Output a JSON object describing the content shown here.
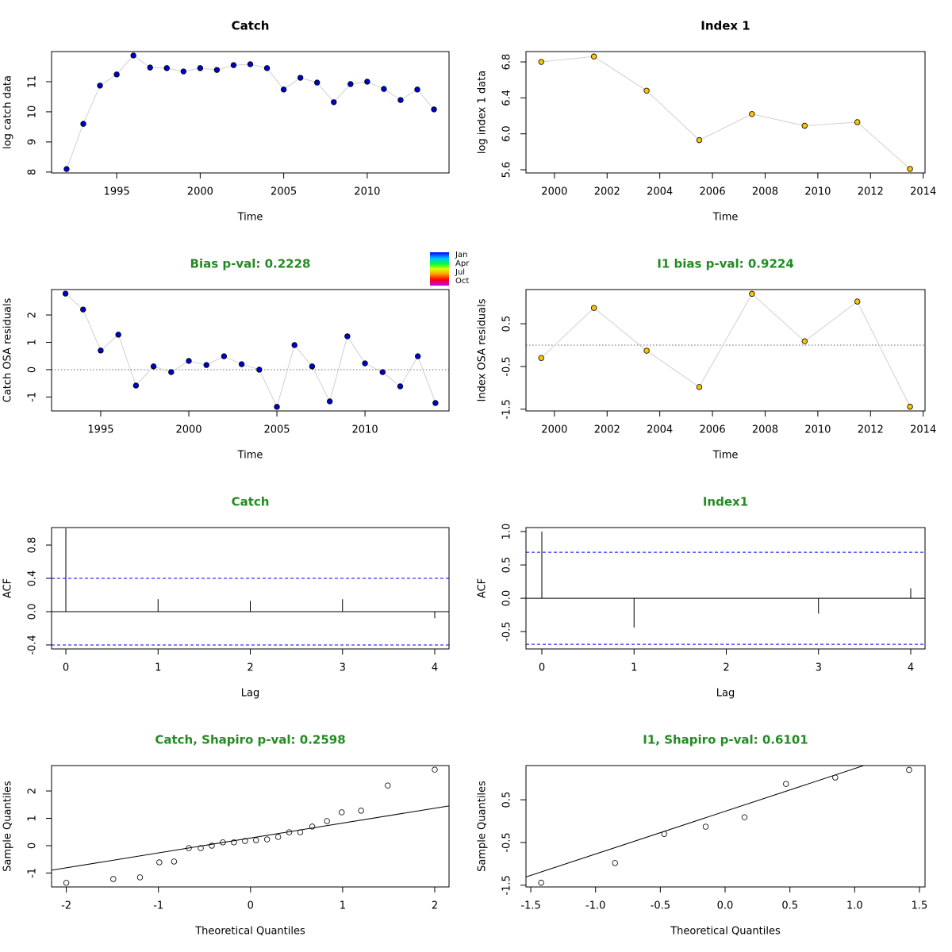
{
  "chart_data": [
    {
      "type": "line",
      "title": "Catch",
      "title_color": "#000000",
      "xlabel": "Time",
      "ylabel": "log catch data",
      "x": [
        1992,
        1993,
        1994,
        1995,
        1996,
        1997,
        1998,
        1999,
        2000,
        2001,
        2002,
        2003,
        2004,
        2005,
        2006,
        2007,
        2008,
        2009,
        2010,
        2011,
        2012,
        2013,
        2014
      ],
      "values": [
        8.1,
        9.6,
        10.87,
        11.24,
        11.87,
        11.47,
        11.45,
        11.34,
        11.45,
        11.39,
        11.55,
        11.58,
        11.45,
        10.74,
        11.13,
        10.97,
        10.32,
        10.92,
        11.0,
        10.76,
        10.39,
        10.74,
        10.08
      ],
      "color": "#0000cd",
      "xlim": [
        1991.1,
        2014.9
      ],
      "ylim": [
        7.97,
        12.0
      ],
      "xticks": [
        1995,
        2000,
        2005,
        2010
      ],
      "yticks": [
        8,
        9,
        10,
        11
      ]
    },
    {
      "type": "line",
      "title": "Index 1",
      "title_color": "#000000",
      "xlabel": "Time",
      "ylabel": "log index 1 data",
      "x": [
        1999.5,
        2001.5,
        2003.5,
        2005.5,
        2007.5,
        2009.5,
        2011.5,
        2013.5
      ],
      "values": [
        6.8,
        6.86,
        6.48,
        5.93,
        6.22,
        6.09,
        6.13,
        5.61
      ],
      "color": "#ffc400",
      "xlim": [
        1998.92,
        2014.07
      ],
      "ylim": [
        5.565,
        6.915
      ],
      "xticks": [
        2000,
        2002,
        2004,
        2006,
        2008,
        2010,
        2012,
        2014
      ],
      "yticks": [
        5.6,
        {
          "value": 6,
          "label": "6.0"
        },
        6.4,
        6.8
      ]
    },
    {
      "type": "line",
      "title": "Bias p-val: 0.2228",
      "title_color": "#228b22",
      "xlabel": "Time",
      "ylabel": "Catch OSA residuals",
      "x": [
        1993,
        1994,
        1995,
        1996,
        1997,
        1998,
        1999,
        2000,
        2001,
        2002,
        2003,
        2004,
        2005,
        2006,
        2007,
        2008,
        2009,
        2010,
        2011,
        2012,
        2013,
        2014
      ],
      "values": [
        2.78,
        2.2,
        0.7,
        1.28,
        -0.58,
        0.12,
        -0.09,
        0.32,
        0.17,
        0.49,
        0.2,
        0.0,
        -1.36,
        0.9,
        0.12,
        -1.16,
        1.22,
        0.23,
        -0.09,
        -0.61,
        0.49,
        -1.22
      ],
      "color": "#0000cd",
      "xlim": [
        1992.21,
        2014.77
      ],
      "ylim": [
        -1.51,
        2.93
      ],
      "xticks": [
        1995,
        2000,
        2005,
        2010
      ],
      "yticks": [
        -1,
        0,
        1,
        2
      ],
      "hline": 0,
      "month_legend": [
        "Jan",
        "Apr",
        "Jul",
        "Oct"
      ]
    },
    {
      "type": "line",
      "title": "I1 bias p-val: 0.9224",
      "title_color": "#228b22",
      "xlabel": "Time",
      "ylabel": "Index OSA residuals",
      "x": [
        1999.5,
        2001.5,
        2003.5,
        2005.5,
        2007.5,
        2009.5,
        2011.5,
        2013.5
      ],
      "values": [
        -0.3,
        0.87,
        -0.13,
        -0.98,
        1.2,
        0.09,
        1.02,
        -1.44
      ],
      "color": "#ffc400",
      "xlim": [
        1998.92,
        2014.07
      ],
      "ylim": [
        -1.54,
        1.3
      ],
      "xticks": [
        2000,
        2002,
        2004,
        2006,
        2008,
        2010,
        2012,
        2014
      ],
      "yticks": [
        -1.5,
        -0.5,
        0.5
      ],
      "hline": 0
    },
    {
      "type": "stem",
      "title": "Catch",
      "title_color": "#228b22",
      "xlabel": "Lag",
      "ylabel": "ACF",
      "x": [
        0,
        1,
        2,
        3,
        4
      ],
      "values": [
        1.0,
        0.15,
        0.13,
        0.15,
        -0.08
      ],
      "color": "#000000",
      "xlim": [
        -0.155,
        4.155
      ],
      "ylim": [
        -0.448,
        1.01
      ],
      "xticks": [
        0,
        1,
        2,
        3,
        4
      ],
      "yticks": [
        -0.4,
        {
          "value": 0,
          "label": "0.0"
        },
        0.4,
        0.8
      ],
      "hline": 0,
      "ci": [
        0.4,
        -0.4
      ],
      "ci_color": "#0000ff"
    },
    {
      "type": "stem",
      "title": "Index1",
      "title_color": "#228b22",
      "xlabel": "Lag",
      "ylabel": "ACF",
      "x": [
        0,
        1,
        2,
        3,
        4
      ],
      "values": [
        1.0,
        -0.44,
        0.0,
        -0.23,
        0.15
      ],
      "color": "#000000",
      "xlim": [
        -0.172,
        4.155
      ],
      "ylim": [
        -0.76,
        1.06
      ],
      "xticks": [
        0,
        1,
        2,
        3,
        4
      ],
      "yticks": [
        -0.5,
        {
          "value": 0,
          "label": "0.0"
        },
        0.5,
        {
          "value": 1,
          "label": "1.0"
        }
      ],
      "hline": 0,
      "ci": [
        0.69,
        -0.69
      ],
      "ci_color": "#0000ff"
    },
    {
      "type": "scatter",
      "title": "Catch, Shapiro p-val: 0.2598",
      "title_color": "#228b22",
      "xlabel": "Theoretical Quantiles",
      "ylabel": "Sample Quantiles",
      "x": [
        -2.0,
        -1.49,
        -1.2,
        -0.99,
        -0.83,
        -0.67,
        -0.54,
        -0.42,
        -0.3,
        -0.18,
        -0.06,
        0.06,
        0.18,
        0.3,
        0.42,
        0.54,
        0.67,
        0.83,
        0.99,
        1.2,
        1.49,
        2.0
      ],
      "values": [
        -1.36,
        -1.22,
        -1.16,
        -0.61,
        -0.58,
        -0.09,
        -0.09,
        0.0,
        0.12,
        0.12,
        0.17,
        0.2,
        0.23,
        0.32,
        0.49,
        0.49,
        0.7,
        0.9,
        1.22,
        1.28,
        2.2,
        2.78
      ],
      "color": "#000000",
      "xlim": [
        -2.16,
        2.155
      ],
      "ylim": [
        -1.51,
        2.93
      ],
      "xticks": [
        -2,
        -1,
        0,
        1,
        2
      ],
      "yticks": [
        -1,
        0,
        1,
        2
      ],
      "qqline": {
        "intercept": 0.28,
        "slope": 0.545
      }
    },
    {
      "type": "scatter",
      "title": "I1, Shapiro p-val: 0.6101",
      "title_color": "#228b22",
      "xlabel": "Theoretical Quantiles",
      "ylabel": "Sample Quantiles",
      "x": [
        -1.42,
        -0.85,
        -0.47,
        -0.15,
        0.15,
        0.47,
        0.85,
        1.42
      ],
      "values": [
        -1.44,
        -0.98,
        -0.3,
        -0.13,
        0.09,
        0.87,
        1.02,
        1.2
      ],
      "color": "#000000",
      "xlim": [
        -1.537,
        1.543
      ],
      "ylim": [
        -1.54,
        1.3
      ],
      "xticks": [
        -1.5,
        {
          "value": -1,
          "label": "-1.0"
        },
        -0.5,
        {
          "value": 0,
          "label": "0.0"
        },
        0.5,
        {
          "value": 1,
          "label": "1.0"
        },
        1.5
      ],
      "yticks": [
        -1.5,
        -0.5,
        0.5
      ],
      "qqline": {
        "intercept": 0.23,
        "slope": 1.0
      }
    }
  ]
}
